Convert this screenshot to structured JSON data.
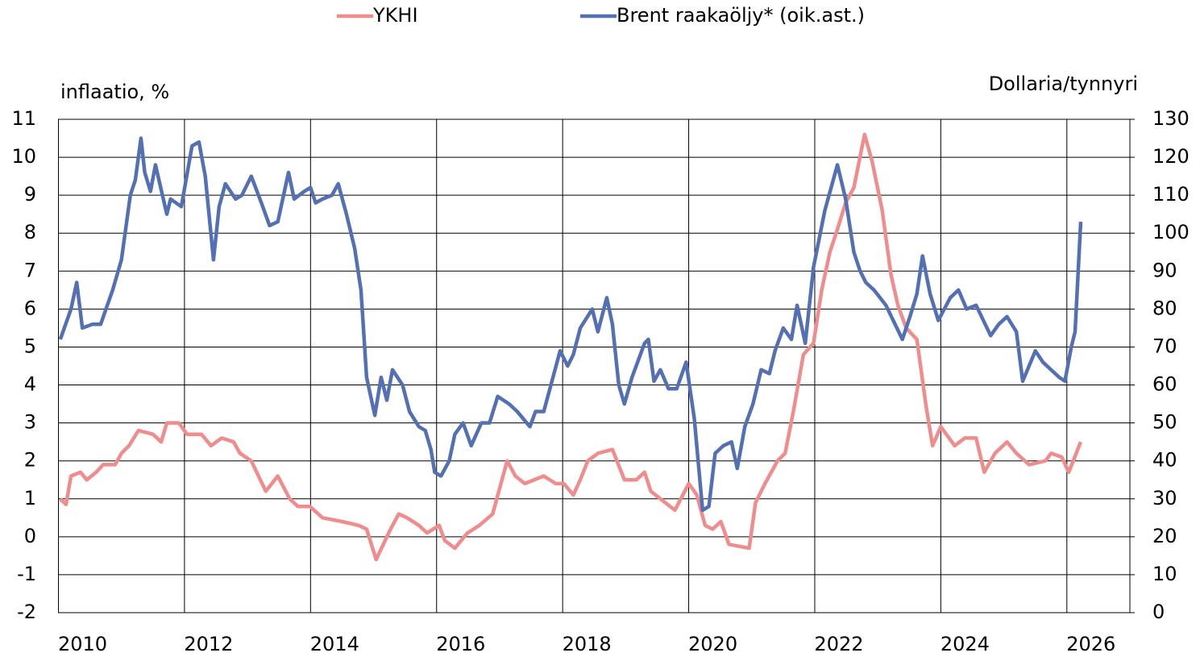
{
  "chart_data": {
    "type": "line",
    "ylabel": "inflaatio, %",
    "y2label": "Dollaria/tynnyri",
    "xlim": [
      2010,
      2027
    ],
    "xticks": [
      2010,
      2012,
      2014,
      2016,
      2018,
      2020,
      2022,
      2024,
      2026
    ],
    "ylim": [
      -2,
      11
    ],
    "yticks": [
      -2,
      -1,
      0,
      1,
      2,
      3,
      4,
      5,
      6,
      7,
      8,
      9,
      10,
      11
    ],
    "y2lim": [
      0,
      130
    ],
    "y2ticks": [
      0,
      10,
      20,
      30,
      40,
      50,
      60,
      70,
      80,
      90,
      100,
      110,
      120,
      130
    ],
    "grid": true,
    "legend": "top",
    "series": [
      {
        "name": "YKHI",
        "color": "#f08c8c",
        "x": [
          2010.03,
          2010.12,
          2010.2,
          2010.35,
          2010.45,
          2010.6,
          2010.71,
          2010.9,
          2011.0,
          2011.12,
          2011.27,
          2011.5,
          2011.63,
          2011.72,
          2011.91,
          2012.04,
          2012.27,
          2012.42,
          2012.59,
          2012.78,
          2012.88,
          2013.06,
          2013.29,
          2013.48,
          2013.67,
          2013.8,
          2013.99,
          2014.19,
          2014.5,
          2014.76,
          2014.89,
          2015.04,
          2015.27,
          2015.4,
          2015.53,
          2015.72,
          2015.85,
          2016.04,
          2016.13,
          2016.29,
          2016.49,
          2016.68,
          2016.89,
          2017.12,
          2017.25,
          2017.4,
          2017.7,
          2017.89,
          2018.02,
          2018.17,
          2018.28,
          2018.4,
          2018.56,
          2018.79,
          2018.98,
          2019.17,
          2019.3,
          2019.4,
          2019.55,
          2019.78,
          2020.0,
          2020.13,
          2020.26,
          2020.38,
          2020.51,
          2020.64,
          2020.96,
          2021.06,
          2021.21,
          2021.41,
          2021.53,
          2021.66,
          2021.82,
          2021.98,
          2022.11,
          2022.24,
          2022.36,
          2022.49,
          2022.62,
          2022.79,
          2022.91,
          2023.07,
          2023.21,
          2023.32,
          2023.45,
          2023.62,
          2023.77,
          2023.87,
          2024.0,
          2024.22,
          2024.38,
          2024.56,
          2024.69,
          2024.86,
          2025.05,
          2025.2,
          2025.4,
          2025.66,
          2025.75,
          2025.92,
          2026.03,
          2026.22
        ],
        "values": [
          1.0,
          0.85,
          1.6,
          1.7,
          1.5,
          1.7,
          1.9,
          1.9,
          2.2,
          2.4,
          2.8,
          2.7,
          2.5,
          3.0,
          3.0,
          2.7,
          2.7,
          2.4,
          2.6,
          2.5,
          2.2,
          2.0,
          1.2,
          1.6,
          1.0,
          0.8,
          0.8,
          0.5,
          0.4,
          0.3,
          0.2,
          -0.6,
          0.2,
          0.6,
          0.5,
          0.3,
          0.1,
          0.3,
          -0.1,
          -0.3,
          0.1,
          0.3,
          0.6,
          2.0,
          1.6,
          1.4,
          1.6,
          1.4,
          1.4,
          1.1,
          1.5,
          2.0,
          2.2,
          2.3,
          1.5,
          1.5,
          1.7,
          1.2,
          1.0,
          0.7,
          1.4,
          1.1,
          0.3,
          0.2,
          0.4,
          -0.2,
          -0.3,
          0.9,
          1.4,
          2.0,
          2.2,
          3.3,
          4.8,
          5.1,
          6.5,
          7.5,
          8.1,
          8.8,
          9.2,
          10.6,
          9.9,
          8.6,
          6.9,
          6.1,
          5.5,
          5.2,
          3.4,
          2.4,
          2.9,
          2.4,
          2.6,
          2.6,
          1.7,
          2.2,
          2.5,
          2.2,
          1.9,
          2.0,
          2.2,
          2.1,
          1.7,
          2.5
        ]
      },
      {
        "name": "Brent raakaöljy* (oik.ast.)",
        "color": "#5470b4",
        "axis": "y2",
        "x": [
          2010.03,
          2010.2,
          2010.29,
          2010.38,
          2010.54,
          2010.67,
          2010.86,
          2011.0,
          2011.14,
          2011.22,
          2011.31,
          2011.37,
          2011.46,
          2011.54,
          2011.72,
          2011.78,
          2011.95,
          2012.12,
          2012.23,
          2012.33,
          2012.46,
          2012.55,
          2012.65,
          2012.81,
          2012.91,
          2013.06,
          2013.22,
          2013.35,
          2013.48,
          2013.65,
          2013.74,
          2013.9,
          2014.0,
          2014.08,
          2014.19,
          2014.34,
          2014.44,
          2014.57,
          2014.7,
          2014.8,
          2014.89,
          2015.02,
          2015.12,
          2015.21,
          2015.3,
          2015.46,
          2015.57,
          2015.72,
          2015.82,
          2015.91,
          2015.97,
          2016.07,
          2016.2,
          2016.29,
          2016.42,
          2016.55,
          2016.71,
          2016.84,
          2016.97,
          2017.15,
          2017.28,
          2017.48,
          2017.57,
          2017.7,
          2017.83,
          2017.96,
          2018.08,
          2018.17,
          2018.28,
          2018.47,
          2018.56,
          2018.7,
          2018.79,
          2018.89,
          2018.98,
          2019.1,
          2019.3,
          2019.36,
          2019.45,
          2019.55,
          2019.68,
          2019.81,
          2019.96,
          2020.09,
          2020.22,
          2020.32,
          2020.42,
          2020.55,
          2020.68,
          2020.77,
          2020.89,
          2021.02,
          2021.15,
          2021.28,
          2021.37,
          2021.5,
          2021.63,
          2021.72,
          2021.85,
          2021.98,
          2022.16,
          2022.36,
          2022.49,
          2022.62,
          2022.72,
          2022.81,
          2022.94,
          2023.13,
          2023.39,
          2023.51,
          2023.62,
          2023.71,
          2023.83,
          2023.96,
          2024.15,
          2024.28,
          2024.41,
          2024.56,
          2024.79,
          2024.92,
          2025.05,
          2025.2,
          2025.3,
          2025.5,
          2025.62,
          2025.88,
          2025.97,
          2026.07,
          2026.13,
          2026.22
        ],
        "values": [
          72,
          80,
          87,
          75,
          76,
          76,
          85,
          93,
          110,
          114,
          125,
          116,
          111,
          118,
          105,
          109,
          107,
          123,
          124,
          115,
          93,
          107,
          113,
          109,
          110,
          115,
          108,
          102,
          103,
          116,
          109,
          111,
          112,
          108,
          109,
          110,
          113,
          105,
          96,
          85,
          62,
          52,
          62,
          56,
          64,
          60,
          53,
          49,
          48,
          43,
          37,
          36,
          40,
          47,
          50,
          44,
          50,
          50,
          57,
          55,
          53,
          49,
          53,
          53,
          61,
          69,
          65,
          68,
          75,
          80,
          74,
          83,
          76,
          60,
          55,
          62,
          71,
          72,
          61,
          64,
          59,
          59,
          66,
          51,
          27,
          28,
          42,
          44,
          45,
          38,
          49,
          55,
          64,
          63,
          69,
          75,
          72,
          81,
          71,
          91,
          106,
          118,
          109,
          95,
          90,
          87,
          85,
          81,
          72,
          78,
          84,
          94,
          84,
          77,
          83,
          85,
          80,
          81,
          73,
          76,
          78,
          74,
          61,
          69,
          66,
          62,
          61,
          70,
          74,
          103
        ]
      }
    ]
  }
}
